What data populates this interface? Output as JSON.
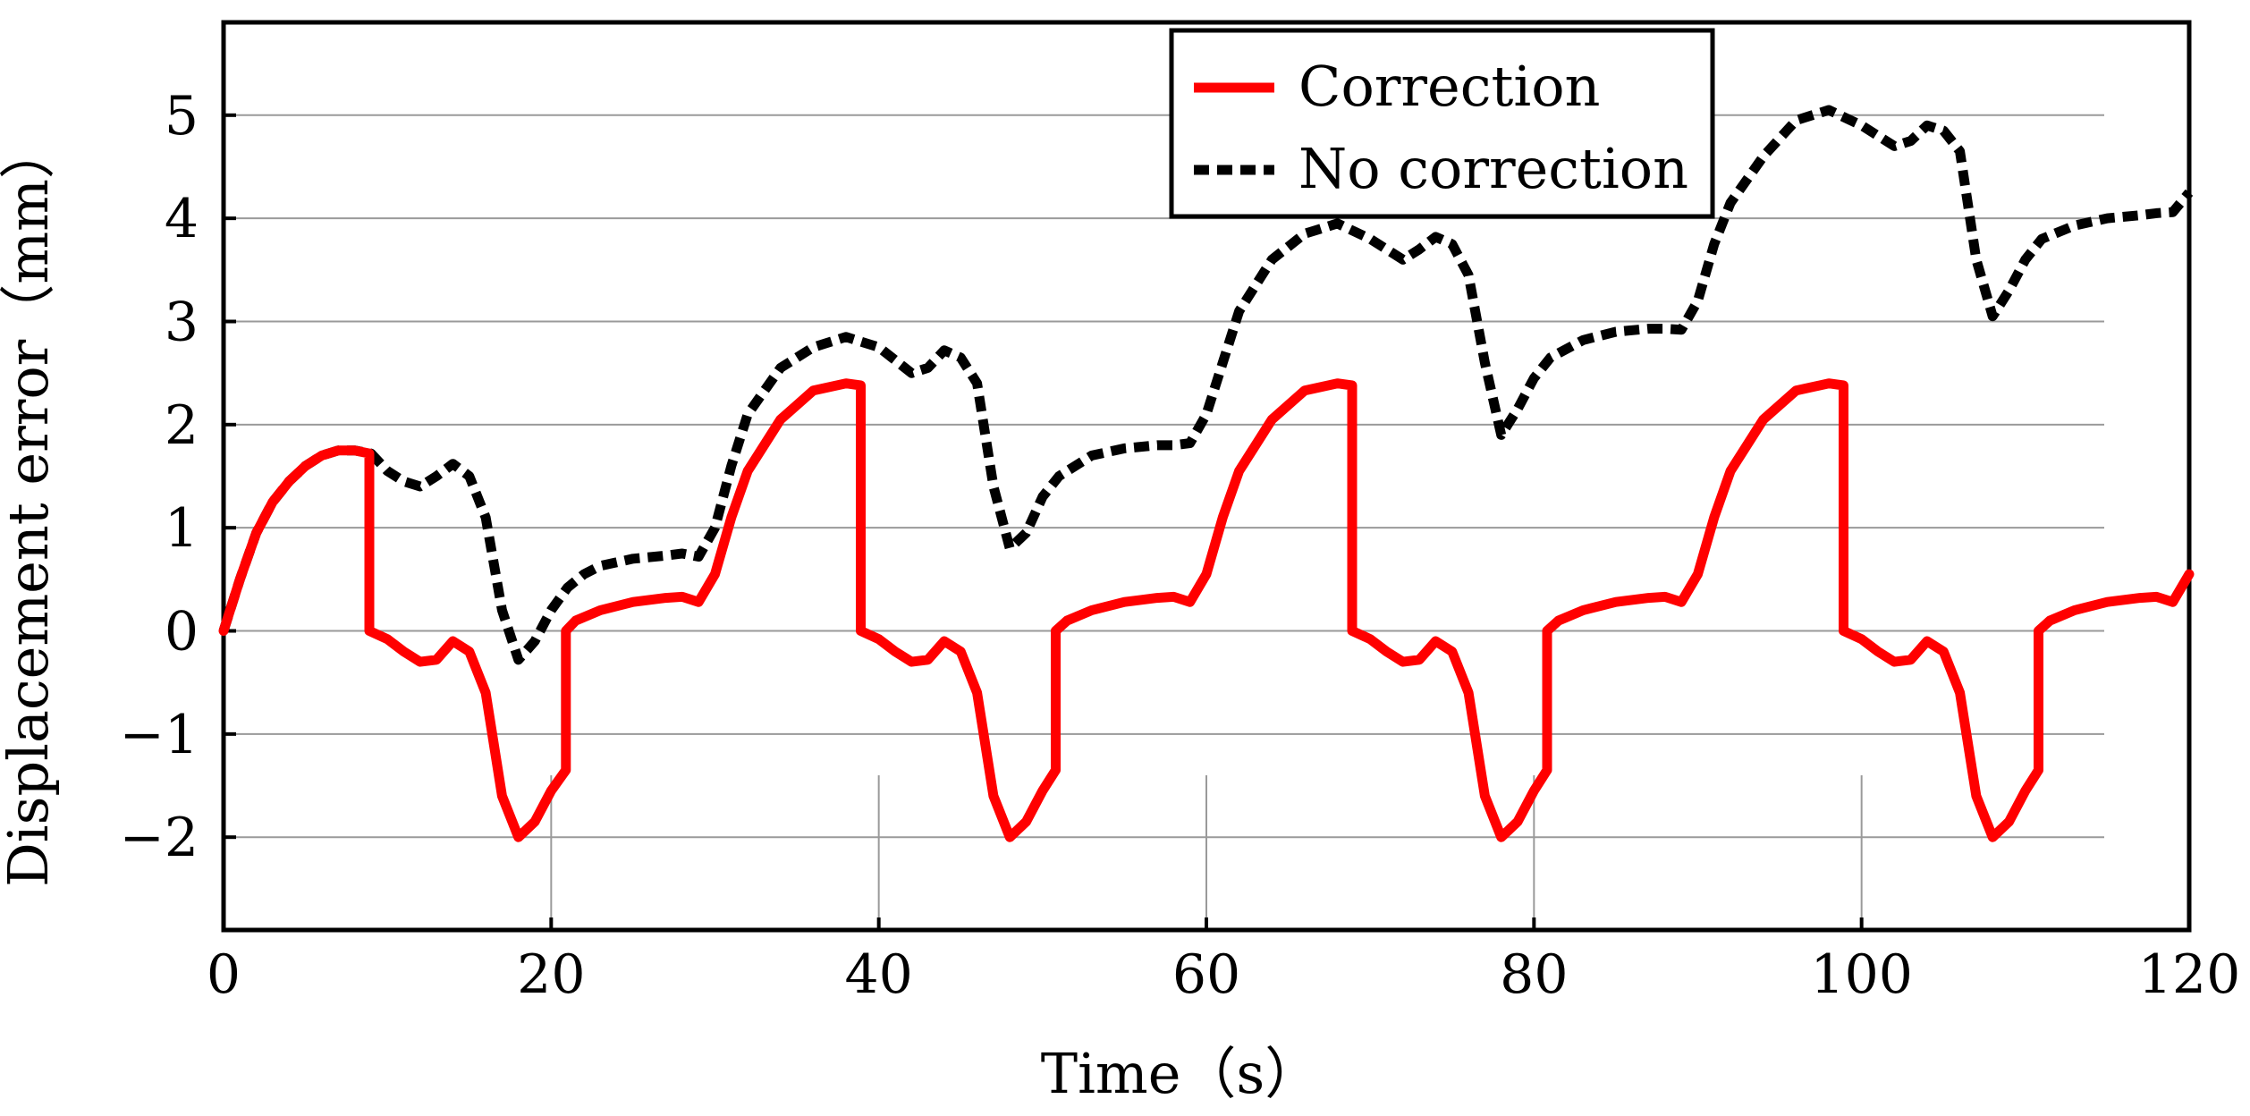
{
  "chart_data": {
    "type": "line",
    "title": "",
    "xlabel": "Time（s）",
    "ylabel": "Displacement error（mm）",
    "xlim": [
      0,
      120
    ],
    "ylim": [
      -2.9,
      5.9
    ],
    "xticks": [
      0,
      20,
      40,
      60,
      80,
      100,
      120
    ],
    "xtick_labels": [
      "0",
      "20",
      "40",
      "60",
      "80",
      "100",
      "120"
    ],
    "yticks": [
      -2,
      -1,
      0,
      1,
      2,
      3,
      4,
      5
    ],
    "ytick_labels": [
      "−2",
      "−1",
      "0",
      "1",
      "2",
      "3",
      "4",
      "5"
    ],
    "grid": true,
    "legend_position": "top-right",
    "series": [
      {
        "name": "Correction",
        "color": "#ff0000",
        "style": "solid",
        "x": [
          0,
          1,
          2,
          3,
          4,
          5,
          6,
          7,
          8,
          8.9,
          8.9,
          10,
          11,
          12,
          13,
          14,
          15,
          16,
          17,
          18,
          19,
          20,
          20.9,
          20.9,
          21.5,
          23,
          25,
          27,
          28,
          29,
          30,
          31,
          32,
          34,
          36,
          38,
          38.9,
          38.9,
          40,
          41,
          42,
          43,
          44,
          45,
          46,
          47,
          48,
          49,
          50,
          50.8,
          50.8,
          51.5,
          53,
          55,
          57,
          58,
          59,
          60,
          61,
          62,
          64,
          66,
          68,
          68.9,
          68.9,
          70,
          71,
          72,
          73,
          74,
          75,
          76,
          77,
          78,
          79,
          80,
          80.8,
          80.8,
          81.5,
          83,
          85,
          87,
          88,
          89,
          90,
          91,
          92,
          94,
          96,
          98,
          98.9,
          98.9,
          100,
          101,
          102,
          103,
          104,
          105,
          106,
          107,
          108,
          109,
          110,
          110.8,
          110.8,
          111.5,
          113,
          115,
          117,
          118,
          119,
          120
        ],
        "values": [
          0,
          0.5,
          0.95,
          1.25,
          1.45,
          1.6,
          1.7,
          1.75,
          1.75,
          1.72,
          0,
          -0.08,
          -0.2,
          -0.3,
          -0.28,
          -0.1,
          -0.2,
          -0.6,
          -1.6,
          -2.0,
          -1.85,
          -1.55,
          -1.35,
          0,
          0.1,
          0.2,
          0.28,
          0.32,
          0.33,
          0.28,
          0.55,
          1.1,
          1.55,
          2.05,
          2.33,
          2.4,
          2.38,
          0,
          -0.08,
          -0.2,
          -0.3,
          -0.28,
          -0.1,
          -0.2,
          -0.6,
          -1.6,
          -2.0,
          -1.85,
          -1.55,
          -1.35,
          0,
          0.1,
          0.2,
          0.28,
          0.32,
          0.33,
          0.28,
          0.55,
          1.1,
          1.55,
          2.05,
          2.33,
          2.4,
          2.38,
          0,
          -0.08,
          -0.2,
          -0.3,
          -0.28,
          -0.1,
          -0.2,
          -0.6,
          -1.6,
          -2.0,
          -1.85,
          -1.55,
          -1.35,
          0,
          0.1,
          0.2,
          0.28,
          0.32,
          0.33,
          0.28,
          0.55,
          1.1,
          1.55,
          2.05,
          2.33,
          2.4,
          2.38,
          0,
          -0.08,
          -0.2,
          -0.3,
          -0.28,
          -0.1,
          -0.2,
          -0.6,
          -1.6,
          -2.0,
          -1.85,
          -1.55,
          -1.35,
          0,
          0.1,
          0.2,
          0.28,
          0.32,
          0.33,
          0.28,
          0.55
        ]
      },
      {
        "name": "No correction",
        "color": "#000000",
        "style": "dashed",
        "x": [
          0,
          1,
          2,
          3,
          4,
          5,
          6,
          7,
          8,
          9,
          10,
          11,
          12,
          13,
          14,
          15,
          16,
          17,
          18,
          19,
          20,
          21,
          22,
          23,
          25,
          27,
          28,
          29,
          30,
          31,
          32,
          34,
          36,
          38,
          40,
          42,
          43,
          44,
          45,
          46,
          47,
          48,
          49,
          50,
          51,
          53,
          55,
          57,
          58,
          59,
          60,
          61,
          62,
          64,
          66,
          68,
          70,
          72,
          73,
          74,
          75,
          76,
          77,
          78,
          79,
          80,
          81,
          83,
          85,
          87,
          88,
          89,
          90,
          91,
          92,
          94,
          96,
          98,
          100,
          102,
          103,
          104,
          105,
          106,
          107,
          108,
          109,
          110,
          111,
          113,
          115,
          117,
          118,
          119,
          120
        ],
        "values": [
          0,
          0.5,
          0.95,
          1.25,
          1.45,
          1.6,
          1.7,
          1.75,
          1.75,
          1.72,
          1.55,
          1.45,
          1.4,
          1.5,
          1.62,
          1.5,
          1.1,
          0.2,
          -0.28,
          -0.1,
          0.2,
          0.42,
          0.55,
          0.63,
          0.7,
          0.73,
          0.75,
          0.72,
          1.0,
          1.6,
          2.1,
          2.55,
          2.75,
          2.85,
          2.75,
          2.5,
          2.55,
          2.72,
          2.65,
          2.4,
          1.4,
          0.8,
          0.95,
          1.3,
          1.5,
          1.7,
          1.77,
          1.8,
          1.8,
          1.82,
          2.1,
          2.6,
          3.1,
          3.6,
          3.85,
          3.95,
          3.8,
          3.6,
          3.7,
          3.82,
          3.75,
          3.45,
          2.6,
          1.9,
          2.15,
          2.45,
          2.65,
          2.82,
          2.9,
          2.93,
          2.93,
          2.92,
          3.2,
          3.75,
          4.15,
          4.6,
          4.95,
          5.05,
          4.9,
          4.7,
          4.75,
          4.9,
          4.85,
          4.65,
          3.6,
          3.05,
          3.3,
          3.6,
          3.8,
          3.93,
          4.0,
          4.03,
          4.05,
          4.06,
          4.25
        ]
      }
    ]
  }
}
